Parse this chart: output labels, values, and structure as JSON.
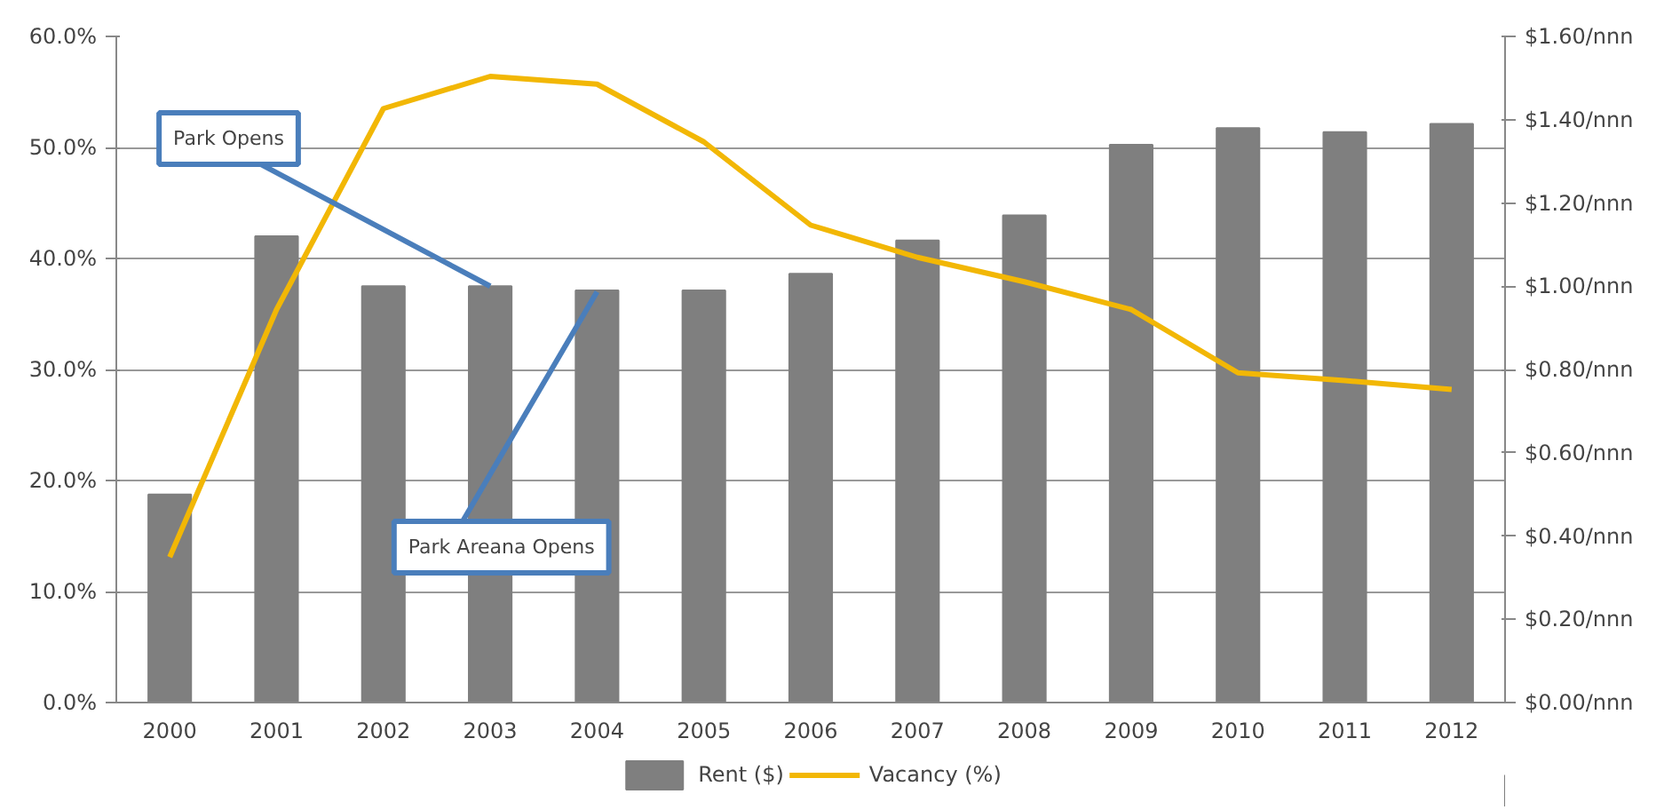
{
  "chart_data": {
    "type": "bar",
    "categories": [
      "2000",
      "2001",
      "2002",
      "2003",
      "2004",
      "2005",
      "2006",
      "2007",
      "2008",
      "2009",
      "2010",
      "2011",
      "2012"
    ],
    "series": [
      {
        "name": "Rent ($)",
        "type": "bar",
        "axis": "y2",
        "color": "#7f7f7f",
        "values": [
          0.5,
          1.12,
          1.0,
          1.0,
          0.99,
          0.99,
          1.03,
          1.11,
          1.17,
          1.34,
          1.38,
          1.37,
          1.39
        ]
      },
      {
        "name": "Vacancy (%)",
        "type": "line",
        "axis": "y",
        "color": "#f2b705",
        "values": [
          13.1,
          35.4,
          53.5,
          56.4,
          55.7,
          50.5,
          43.0,
          40.1,
          37.9,
          35.4,
          29.7,
          29.0,
          28.2
        ]
      }
    ],
    "ylim": [
      0,
      60
    ],
    "yticks": [
      {
        "value": 0,
        "label": "0.0%"
      },
      {
        "value": 10,
        "label": "10.0%"
      },
      {
        "value": 20,
        "label": "20.0%"
      },
      {
        "value": 30,
        "label": "30.0%"
      },
      {
        "value": 40,
        "label": "40.0%"
      },
      {
        "value": 50,
        "label": "50.0%"
      },
      {
        "value": 60,
        "label": "60.0%"
      }
    ],
    "y2lim": [
      0,
      1.6
    ],
    "y2ticks": [
      {
        "value": 0,
        "label": "$0.00/nnn"
      },
      {
        "value": 0.2,
        "label": "$0.20/nnn"
      },
      {
        "value": 0.4,
        "label": "$0.40/nnn"
      },
      {
        "value": 0.6,
        "label": "$0.60/nnn"
      },
      {
        "value": 0.8,
        "label": "$0.80/nnn"
      },
      {
        "value": 1.0,
        "label": "$1.00/nnn"
      },
      {
        "value": 1.2,
        "label": "$1.20/nnn"
      },
      {
        "value": 1.4,
        "label": "$1.40/nnn"
      },
      {
        "value": 1.6,
        "label": "$1.60/nnn"
      }
    ],
    "grid": "y",
    "legend": "bottom",
    "annotations": [
      {
        "text": "Park Opens",
        "x": "2003",
        "y": 37.5
      },
      {
        "text": "Park Areana Opens",
        "x": "2004",
        "y": 37.0
      }
    ]
  }
}
